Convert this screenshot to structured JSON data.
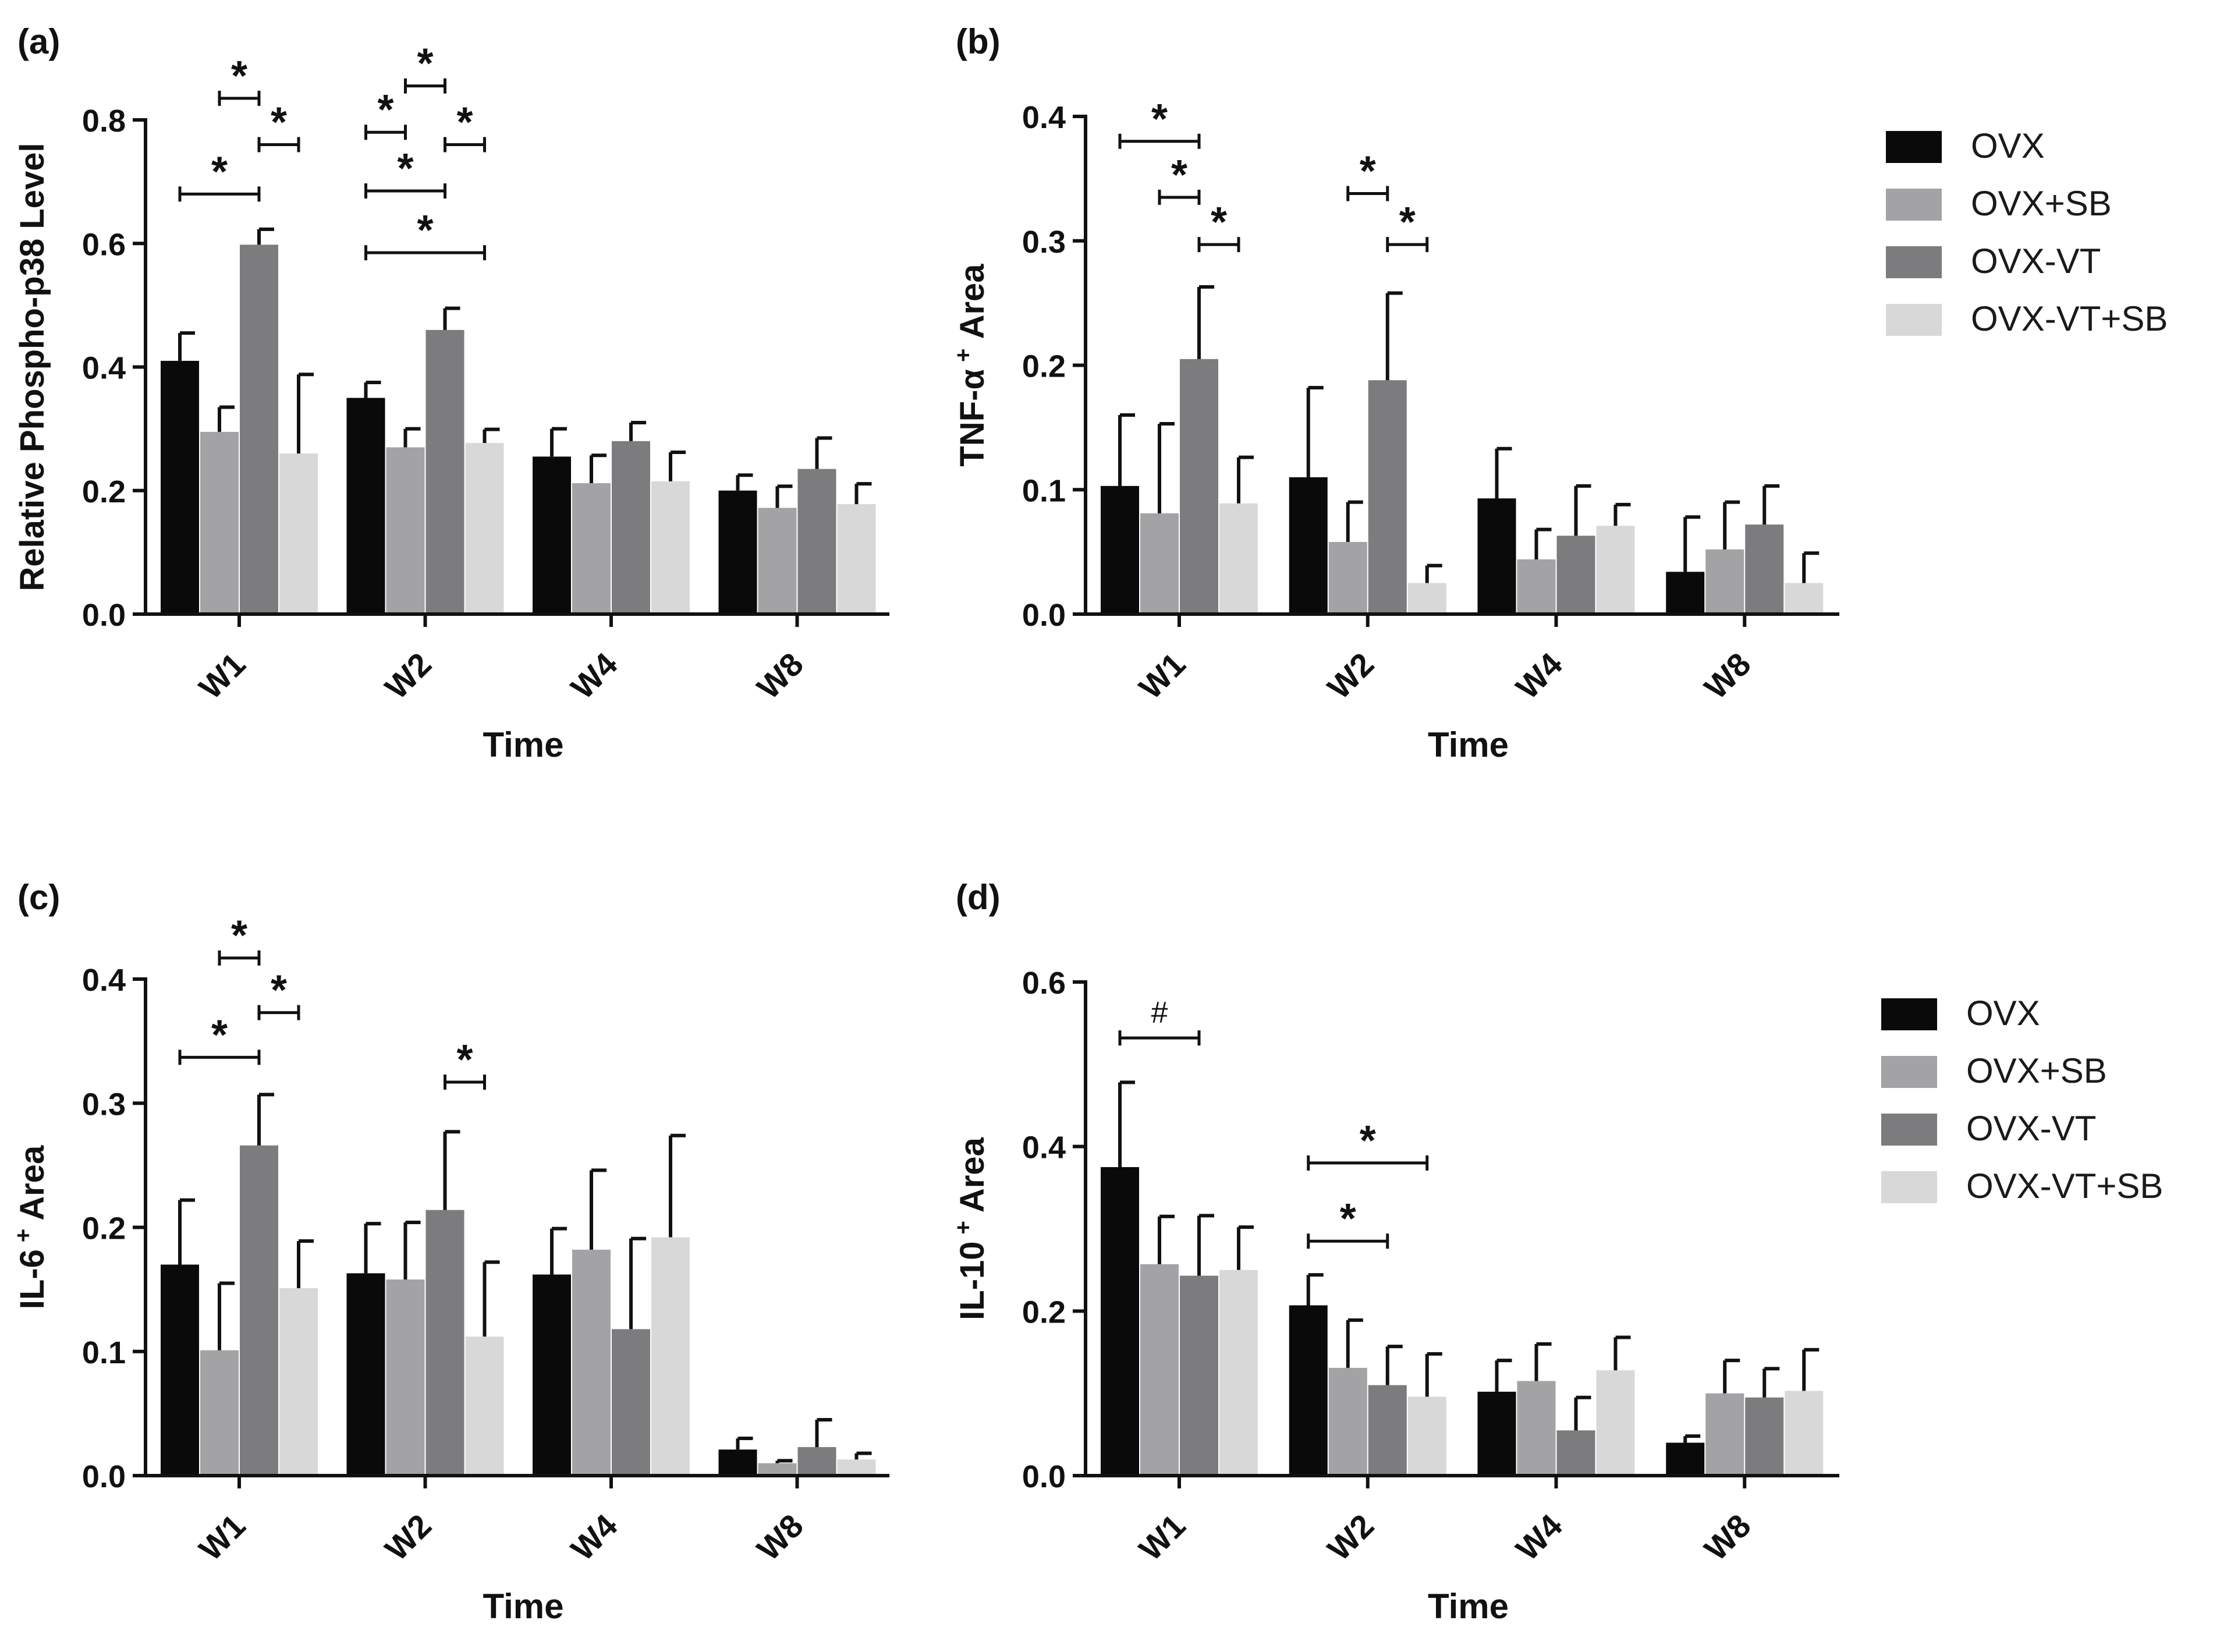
{
  "figure": {
    "colors": {
      "OVX": "#0a0a0a",
      "OVX+SB": "#a3a3a6",
      "OVX-VT": "#7c7c7e",
      "OVX-VT+SB": "#d8d8d8",
      "axis": "#111111"
    },
    "legend_labels": [
      "OVX",
      "OVX+SB",
      "OVX-VT",
      "OVX-VT+SB"
    ]
  },
  "chart_data": [
    {
      "panel_label": "(a)",
      "type": "bar",
      "ylabel": "Relative Phospho-p38 Level",
      "ylabel_sup": "",
      "ylabel_tail": "",
      "xlabel": "Time",
      "categories": [
        "W1",
        "W2",
        "W4",
        "W8"
      ],
      "ylim": [
        0,
        0.8
      ],
      "yticks": [
        0.0,
        0.2,
        0.4,
        0.6,
        0.8
      ],
      "ytick_labels": [
        "0.0",
        "0.2",
        "0.4",
        "0.6",
        "0.8"
      ],
      "series": [
        {
          "name": "OVX",
          "values": [
            0.41,
            0.35,
            0.255,
            0.2
          ],
          "errors": [
            0.045,
            0.025,
            0.045,
            0.025
          ]
        },
        {
          "name": "OVX+SB",
          "values": [
            0.295,
            0.27,
            0.212,
            0.172
          ],
          "errors": [
            0.04,
            0.03,
            0.045,
            0.035
          ]
        },
        {
          "name": "OVX-VT",
          "values": [
            0.598,
            0.46,
            0.28,
            0.235
          ],
          "errors": [
            0.025,
            0.035,
            0.03,
            0.05
          ]
        },
        {
          "name": "OVX-VT+SB",
          "values": [
            0.26,
            0.277,
            0.215,
            0.178
          ],
          "errors": [
            0.128,
            0.022,
            0.047,
            0.033
          ]
        }
      ],
      "annotations": [
        {
          "cat": 0,
          "from": 1,
          "to": 2,
          "y": 0.835,
          "label": "*"
        },
        {
          "cat": 0,
          "from": 2,
          "to": 3,
          "y": 0.76,
          "label": "*"
        },
        {
          "cat": 0,
          "from": 0,
          "to": 2,
          "y": 0.68,
          "label": "*"
        },
        {
          "cat": 1,
          "from": 1,
          "to": 2,
          "y": 0.855,
          "label": "*"
        },
        {
          "cat": 1,
          "from": 0,
          "to": 1,
          "y": 0.78,
          "label": "*"
        },
        {
          "cat": 1,
          "from": 2,
          "to": 3,
          "y": 0.76,
          "label": "*"
        },
        {
          "cat": 1,
          "from": 0,
          "to": 2,
          "y": 0.685,
          "label": "*"
        },
        {
          "cat": 1,
          "from": 0,
          "to": 3,
          "y": 0.585,
          "label": "*"
        }
      ]
    },
    {
      "panel_label": "(b)",
      "type": "bar",
      "ylabel": "TNF-α",
      "ylabel_sup": "+",
      "ylabel_tail": " Area",
      "xlabel": "Time",
      "categories": [
        "W1",
        "W2",
        "W4",
        "W8"
      ],
      "ylim": [
        0,
        0.4
      ],
      "yticks": [
        0.0,
        0.1,
        0.2,
        0.3,
        0.4
      ],
      "ytick_labels": [
        "0.0",
        "0.1",
        "0.2",
        "0.3",
        "0.4"
      ],
      "series": [
        {
          "name": "OVX",
          "values": [
            0.103,
            0.11,
            0.093,
            0.034
          ],
          "errors": [
            0.057,
            0.072,
            0.04,
            0.044
          ]
        },
        {
          "name": "OVX+SB",
          "values": [
            0.081,
            0.058,
            0.044,
            0.052
          ],
          "errors": [
            0.072,
            0.032,
            0.024,
            0.038
          ]
        },
        {
          "name": "OVX-VT",
          "values": [
            0.205,
            0.188,
            0.063,
            0.072
          ],
          "errors": [
            0.058,
            0.07,
            0.04,
            0.031
          ]
        },
        {
          "name": "OVX-VT+SB",
          "values": [
            0.089,
            0.025,
            0.071,
            0.025
          ],
          "errors": [
            0.037,
            0.014,
            0.017,
            0.024
          ]
        }
      ],
      "annotations": [
        {
          "cat": 0,
          "from": 0,
          "to": 2,
          "y": 0.38,
          "label": "*"
        },
        {
          "cat": 0,
          "from": 1,
          "to": 2,
          "y": 0.335,
          "label": "*"
        },
        {
          "cat": 0,
          "from": 2,
          "to": 3,
          "y": 0.297,
          "label": "*"
        },
        {
          "cat": 1,
          "from": 1,
          "to": 2,
          "y": 0.338,
          "label": "*"
        },
        {
          "cat": 1,
          "from": 2,
          "to": 3,
          "y": 0.297,
          "label": "*"
        }
      ]
    },
    {
      "panel_label": "(c)",
      "type": "bar",
      "ylabel": "IL-6",
      "ylabel_sup": "+",
      "ylabel_tail": " Area",
      "xlabel": "Time",
      "categories": [
        "W1",
        "W2",
        "W4",
        "W8"
      ],
      "ylim": [
        0,
        0.4
      ],
      "yticks": [
        0.0,
        0.1,
        0.2,
        0.3,
        0.4
      ],
      "ytick_labels": [
        "0.0",
        "0.1",
        "0.2",
        "0.3",
        "0.4"
      ],
      "series": [
        {
          "name": "OVX",
          "values": [
            0.17,
            0.163,
            0.162,
            0.021
          ],
          "errors": [
            0.052,
            0.04,
            0.037,
            0.009
          ]
        },
        {
          "name": "OVX+SB",
          "values": [
            0.101,
            0.158,
            0.182,
            0.01
          ],
          "errors": [
            0.054,
            0.046,
            0.064,
            0.002
          ]
        },
        {
          "name": "OVX-VT",
          "values": [
            0.266,
            0.214,
            0.118,
            0.023
          ],
          "errors": [
            0.041,
            0.063,
            0.073,
            0.022
          ]
        },
        {
          "name": "OVX-VT+SB",
          "values": [
            0.151,
            0.112,
            0.192,
            0.013
          ],
          "errors": [
            0.038,
            0.06,
            0.082,
            0.005
          ]
        }
      ],
      "annotations": [
        {
          "cat": 0,
          "from": 1,
          "to": 2,
          "y": 0.417,
          "label": "*"
        },
        {
          "cat": 0,
          "from": 2,
          "to": 3,
          "y": 0.373,
          "label": "*"
        },
        {
          "cat": 0,
          "from": 0,
          "to": 2,
          "y": 0.337,
          "label": "*"
        },
        {
          "cat": 1,
          "from": 2,
          "to": 3,
          "y": 0.317,
          "label": "*"
        }
      ]
    },
    {
      "panel_label": "(d)",
      "type": "bar",
      "ylabel": "IL-10",
      "ylabel_sup": "+",
      "ylabel_tail": " Area",
      "xlabel": "Time",
      "categories": [
        "W1",
        "W2",
        "W4",
        "W8"
      ],
      "ylim": [
        0,
        0.6
      ],
      "yticks": [
        0.0,
        0.2,
        0.4,
        0.6
      ],
      "ytick_labels": [
        "0.0",
        "0.2",
        "0.4",
        "0.6"
      ],
      "series": [
        {
          "name": "OVX",
          "values": [
            0.375,
            0.207,
            0.102,
            0.04
          ],
          "errors": [
            0.103,
            0.037,
            0.038,
            0.008
          ]
        },
        {
          "name": "OVX+SB",
          "values": [
            0.257,
            0.131,
            0.115,
            0.1
          ],
          "errors": [
            0.058,
            0.058,
            0.045,
            0.04
          ]
        },
        {
          "name": "OVX-VT",
          "values": [
            0.243,
            0.11,
            0.055,
            0.095
          ],
          "errors": [
            0.073,
            0.047,
            0.04,
            0.035
          ]
        },
        {
          "name": "OVX-VT+SB",
          "values": [
            0.25,
            0.096,
            0.128,
            0.103
          ],
          "errors": [
            0.052,
            0.052,
            0.04,
            0.05
          ]
        }
      ],
      "annotations": [
        {
          "cat": 0,
          "from": 0,
          "to": 2,
          "y": 0.532,
          "label": "#"
        },
        {
          "cat": 1,
          "from": 0,
          "to": 3,
          "y": 0.38,
          "label": "*"
        },
        {
          "cat": 1,
          "from": 0,
          "to": 2,
          "y": 0.285,
          "label": "*"
        }
      ]
    }
  ]
}
